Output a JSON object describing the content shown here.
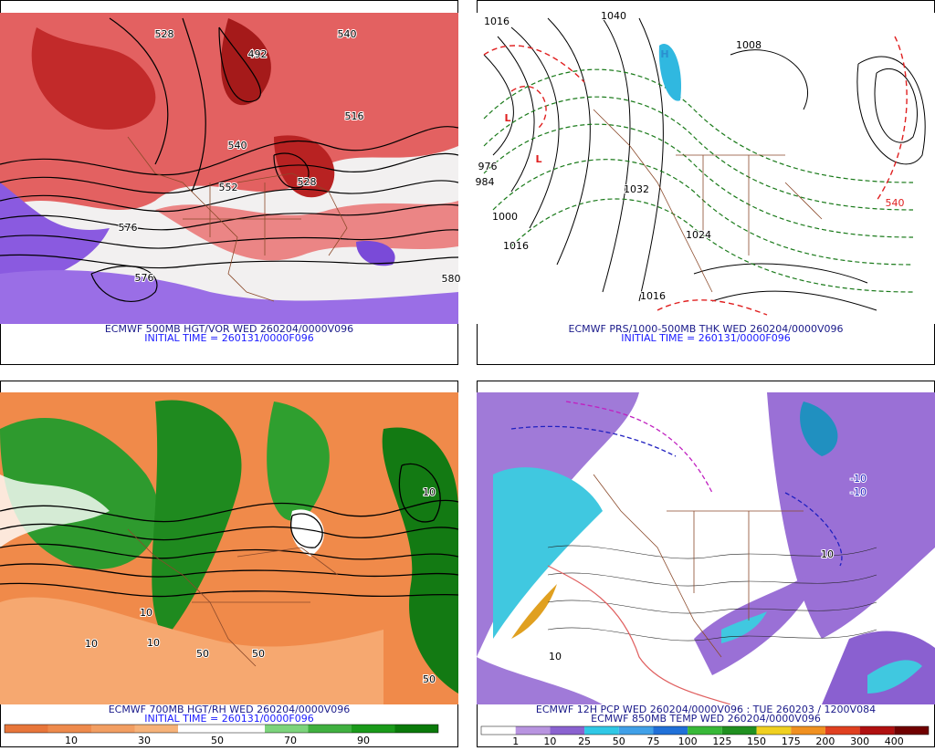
{
  "panels": [
    {
      "caption": [
        "ECMWF 500MB HGT/VOR WED 260204/0000V096",
        "INITIAL TIME = 260131/0000F096"
      ],
      "labels": [
        "528",
        "540",
        "492",
        "552",
        "528",
        "516",
        "576",
        "540",
        "576",
        "580"
      ]
    },
    {
      "caption": [
        "ECMWF PRS/1000-500MB THK WED 260204/0000V096",
        "INITIAL TIME = 260131/0000F096"
      ],
      "labels": [
        "1040",
        "1016",
        "1008",
        "976",
        "984",
        "1000",
        "1016",
        "1032",
        "1024",
        "1016",
        "540",
        "L",
        "L",
        "H"
      ]
    },
    {
      "caption": [
        "ECMWF 700MB HGT/RH WED 260204/0000V096",
        "INITIAL TIME = 260131/0000F096"
      ],
      "labels": [
        "10",
        "10",
        "50",
        "50",
        "50",
        "10",
        "10"
      ],
      "legend": [
        10,
        30,
        50,
        70,
        90
      ]
    },
    {
      "caption": [
        "ECMWF 12H PCP WED 260204/0000V096 : TUE 260203 / 1200V084",
        "ECMWF 850MB TEMP WED 260204/0000V096"
      ],
      "labels": [
        "-10",
        "-10",
        "10",
        "10"
      ],
      "legend": [
        1,
        10,
        25,
        50,
        75,
        100,
        125,
        150,
        175,
        200,
        300,
        400
      ]
    }
  ]
}
